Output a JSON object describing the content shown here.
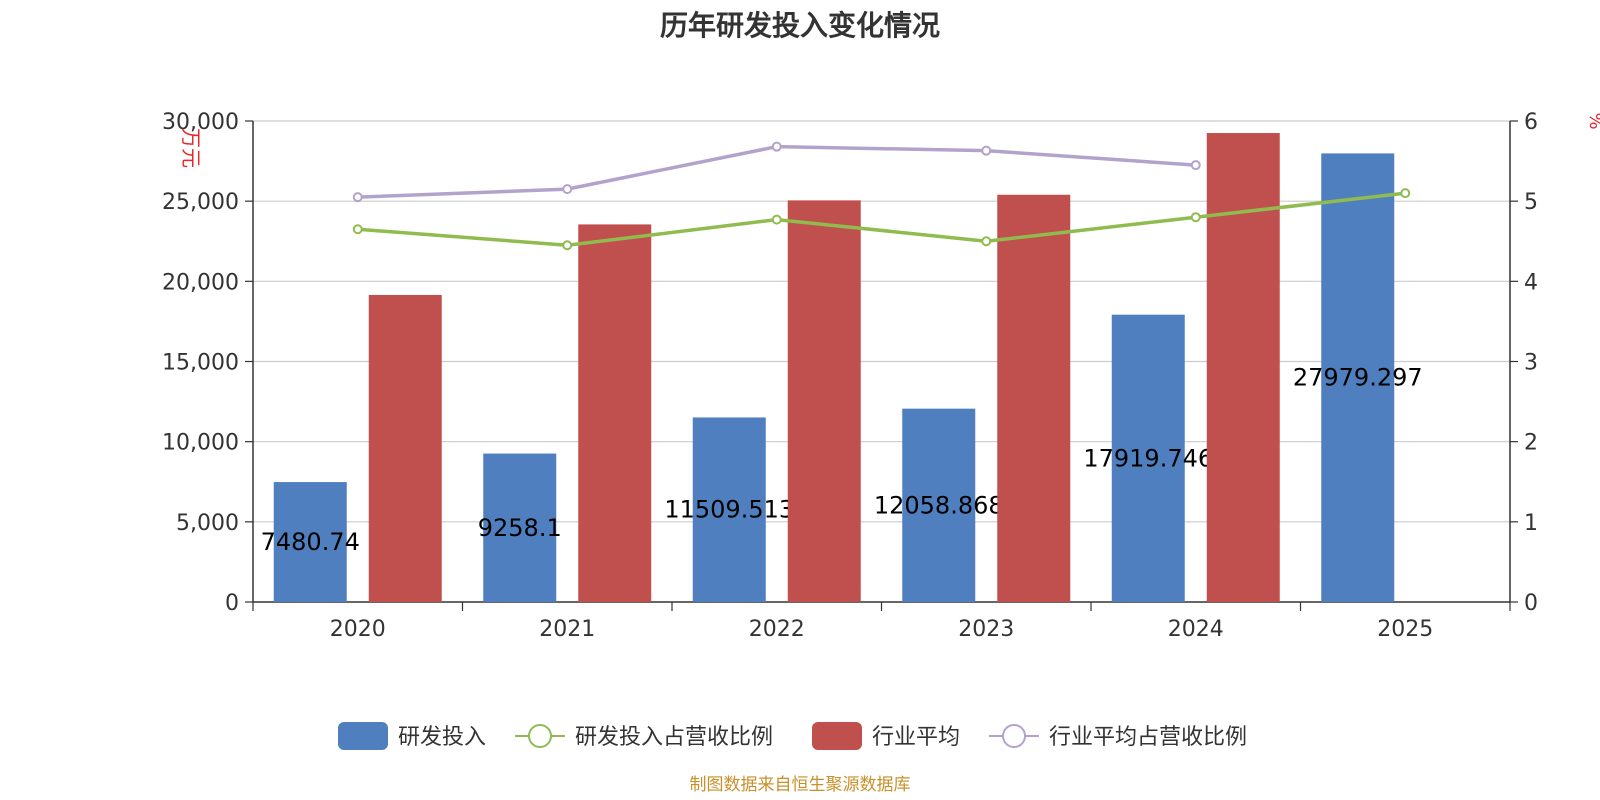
{
  "chart_data": {
    "type": "bar",
    "title": "历年研发投入变化情况",
    "categories": [
      "2020",
      "2021",
      "2022",
      "2023",
      "2024",
      "2025"
    ],
    "y_left": {
      "unit": "万元",
      "range": [
        0,
        30000
      ],
      "ticks": [
        "0",
        "5,000",
        "10,000",
        "15,000",
        "20,000",
        "25,000",
        "30,000"
      ]
    },
    "y_right": {
      "unit": "%",
      "range": [
        0,
        6
      ],
      "ticks": [
        "0",
        "1",
        "2",
        "3",
        "4",
        "5",
        "6"
      ]
    },
    "grid": true,
    "legend_position": "bottom",
    "series": [
      {
        "name": "研发投入",
        "type": "bar",
        "axis": "left",
        "color": "#4f7fbf",
        "values": [
          7480.74,
          9258.1,
          11509.513,
          12058.868,
          17919.746,
          27979.297
        ],
        "labels": [
          "7480.74",
          "9258.1",
          "11509.513",
          "12058.868",
          "17919.746",
          "27979.297"
        ]
      },
      {
        "name": "研发投入占营收比例",
        "type": "line",
        "axis": "right",
        "color": "#8fbb4f",
        "values": [
          4.65,
          4.45,
          4.77,
          4.5,
          4.8,
          5.1
        ]
      },
      {
        "name": "行业平均",
        "type": "bar",
        "axis": "left",
        "color": "#c0504d",
        "values": [
          19150,
          23550,
          25050,
          25400,
          29250,
          null
        ]
      },
      {
        "name": "行业平均占营收比例",
        "type": "line",
        "axis": "right",
        "color": "#b3a2cc",
        "values": [
          5.05,
          5.15,
          5.68,
          5.63,
          5.45,
          null
        ]
      }
    ]
  },
  "source": "制图数据来自恒生聚源数据库"
}
